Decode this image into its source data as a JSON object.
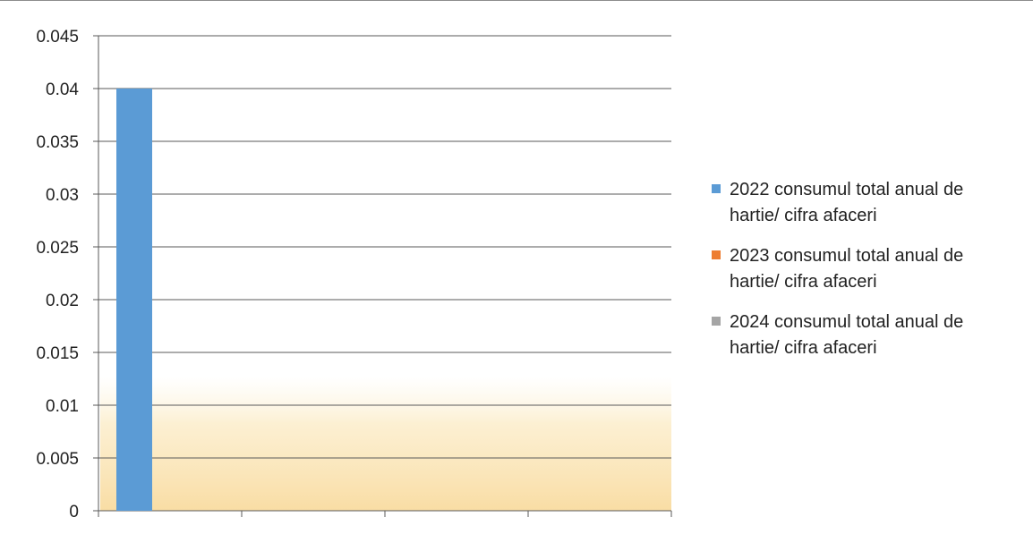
{
  "chart_data": {
    "type": "bar",
    "categories": [
      "",
      "",
      "",
      ""
    ],
    "series": [
      {
        "name": "2022 consumul total anual de hartie/ cifra afaceri",
        "color": "#5b9bd5",
        "values": [
          0.04,
          null,
          null,
          null
        ]
      },
      {
        "name": "2023 consumul total anual de hartie/ cifra afaceri",
        "color": "#ed7d31",
        "values": [
          null,
          null,
          null,
          null
        ]
      },
      {
        "name": "2024 consumul total anual de hartie/ cifra afaceri",
        "color": "#a5a5a5",
        "values": [
          null,
          null,
          null,
          null
        ]
      }
    ],
    "ylim": [
      0,
      0.045
    ],
    "yticks": [
      "0",
      "0.005",
      "0.01",
      "0.015",
      "0.02",
      "0.025",
      "0.03",
      "0.035",
      "0.04",
      "0.045"
    ],
    "grid": true,
    "legend_position": "right",
    "title": "",
    "xlabel": "",
    "ylabel": ""
  }
}
